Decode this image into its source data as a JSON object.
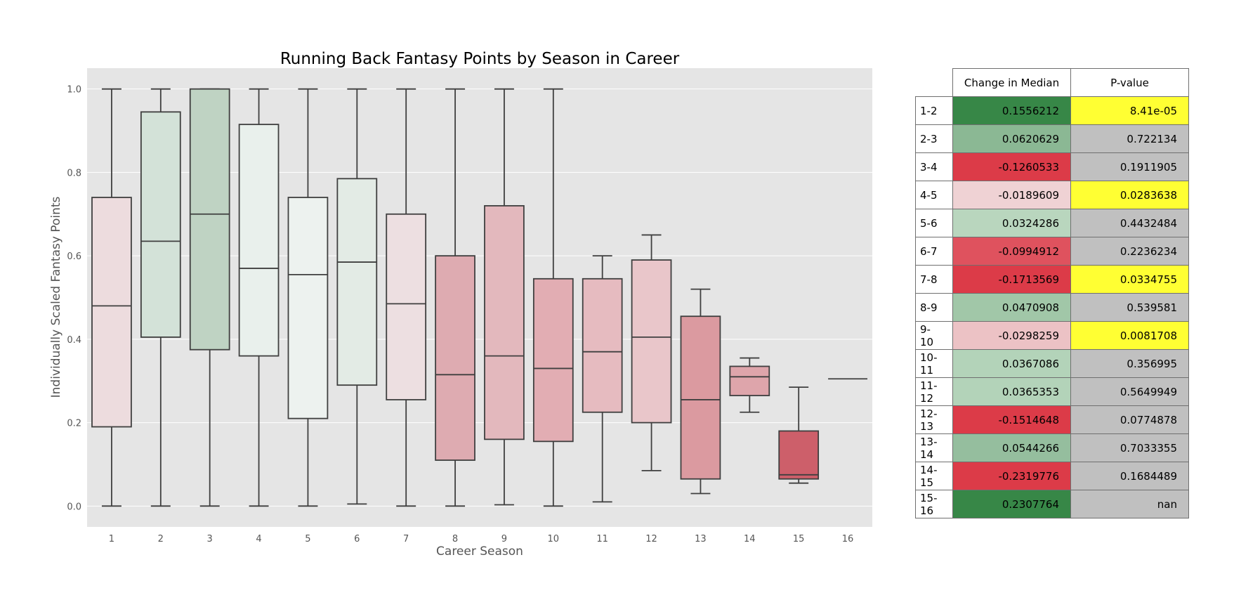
{
  "colors": {
    "plot_background": "#e5e5e5",
    "box_edge": "#3f3f3f",
    "yellow": "#ffff33",
    "gray": "#c0c0c0"
  },
  "chart_data": [
    {
      "type": "box",
      "title": "Running Back Fantasy Points by Season in Career",
      "xlabel": "Career Season",
      "ylabel": "Individually Scaled Fantasy Points",
      "ylim": [
        -0.05,
        1.05
      ],
      "yticks": [
        "0.0",
        "0.2",
        "0.4",
        "0.6",
        "0.8",
        "1.0"
      ],
      "grid": true,
      "categories": [
        "1",
        "2",
        "3",
        "4",
        "5",
        "6",
        "7",
        "8",
        "9",
        "10",
        "11",
        "12",
        "13",
        "14",
        "15",
        "16"
      ],
      "boxes": [
        {
          "min": 0.0,
          "q1": 0.19,
          "median": 0.48,
          "q3": 0.74,
          "max": 1.0,
          "color": "#eddcde"
        },
        {
          "min": 0.0,
          "q1": 0.405,
          "median": 0.635,
          "q3": 0.945,
          "max": 1.0,
          "color": "#d3e2d8"
        },
        {
          "min": 0.0,
          "q1": 0.375,
          "median": 0.7,
          "q3": 1.0,
          "max": 1.0,
          "color": "#bfd3c3"
        },
        {
          "min": 0.0,
          "q1": 0.36,
          "median": 0.57,
          "q3": 0.915,
          "max": 1.0,
          "color": "#e9f0ec"
        },
        {
          "min": 0.0,
          "q1": 0.21,
          "median": 0.555,
          "q3": 0.74,
          "max": 1.0,
          "color": "#edf2ef"
        },
        {
          "min": 0.005,
          "q1": 0.29,
          "median": 0.585,
          "q3": 0.785,
          "max": 1.0,
          "color": "#e3ebe5"
        },
        {
          "min": 0.0,
          "q1": 0.255,
          "median": 0.485,
          "q3": 0.7,
          "max": 1.0,
          "color": "#eddfe1"
        },
        {
          "min": 0.0,
          "q1": 0.11,
          "median": 0.315,
          "q3": 0.6,
          "max": 1.0,
          "color": "#deabb1"
        },
        {
          "min": 0.003,
          "q1": 0.16,
          "median": 0.36,
          "q3": 0.72,
          "max": 1.0,
          "color": "#e3b8bd"
        },
        {
          "min": 0.0,
          "q1": 0.155,
          "median": 0.33,
          "q3": 0.545,
          "max": 1.0,
          "color": "#e2adb3"
        },
        {
          "min": 0.01,
          "q1": 0.225,
          "median": 0.37,
          "q3": 0.545,
          "max": 0.6,
          "color": "#e6bbc0"
        },
        {
          "min": 0.085,
          "q1": 0.2,
          "median": 0.405,
          "q3": 0.59,
          "max": 0.65,
          "color": "#e9c6ca"
        },
        {
          "min": 0.03,
          "q1": 0.065,
          "median": 0.255,
          "q3": 0.455,
          "max": 0.52,
          "color": "#db9aa0"
        },
        {
          "min": 0.225,
          "q1": 0.265,
          "median": 0.31,
          "q3": 0.335,
          "max": 0.355,
          "color": "#dea5ab"
        },
        {
          "min": 0.055,
          "q1": 0.065,
          "median": 0.075,
          "q3": 0.18,
          "max": 0.285,
          "color": "#cd5f6a"
        },
        {
          "min": 0.305,
          "q1": 0.305,
          "median": 0.305,
          "q3": 0.305,
          "max": 0.305,
          "color": "#eddcde"
        }
      ]
    },
    {
      "type": "table",
      "columns": [
        "Change in Median",
        "P-value"
      ],
      "rows": [
        {
          "label": "1-2",
          "change": "0.1556212",
          "pvalue": "8.41e-05",
          "change_color": "#378747",
          "pvalue_color": "#ffff33"
        },
        {
          "label": "2-3",
          "change": "0.0620629",
          "pvalue": "0.722134",
          "change_color": "#8bb894",
          "pvalue_color": "#c0c0c0"
        },
        {
          "label": "3-4",
          "change": "-0.1260533",
          "pvalue": "0.1911905",
          "change_color": "#dc3b48",
          "pvalue_color": "#c0c0c0"
        },
        {
          "label": "4-5",
          "change": "-0.0189609",
          "pvalue": "0.0283638",
          "change_color": "#efd2d4",
          "pvalue_color": "#ffff33"
        },
        {
          "label": "5-6",
          "change": "0.0324286",
          "pvalue": "0.4432484",
          "change_color": "#b9d6be",
          "pvalue_color": "#c0c0c0"
        },
        {
          "label": "6-7",
          "change": "-0.0994912",
          "pvalue": "0.2236234",
          "change_color": "#df525e",
          "pvalue_color": "#c0c0c0"
        },
        {
          "label": "7-8",
          "change": "-0.1713569",
          "pvalue": "0.0334755",
          "change_color": "#dc3b48",
          "pvalue_color": "#ffff33"
        },
        {
          "label": "8-9",
          "change": "0.0470908",
          "pvalue": "0.539581",
          "change_color": "#a1c7a8",
          "pvalue_color": "#c0c0c0"
        },
        {
          "label": "9-10",
          "change": "-0.0298259",
          "pvalue": "0.0081708",
          "change_color": "#ecc2c5",
          "pvalue_color": "#ffff33"
        },
        {
          "label": "10-11",
          "change": "0.0367086",
          "pvalue": "0.356995",
          "change_color": "#b3d3b9",
          "pvalue_color": "#c0c0c0"
        },
        {
          "label": "11-12",
          "change": "0.0365353",
          "pvalue": "0.5649949",
          "change_color": "#b3d3b9",
          "pvalue_color": "#c0c0c0"
        },
        {
          "label": "12-13",
          "change": "-0.1514648",
          "pvalue": "0.0774878",
          "change_color": "#dc3b48",
          "pvalue_color": "#c0c0c0"
        },
        {
          "label": "13-14",
          "change": "0.0544266",
          "pvalue": "0.7033355",
          "change_color": "#95be9e",
          "pvalue_color": "#c0c0c0"
        },
        {
          "label": "14-15",
          "change": "-0.2319776",
          "pvalue": "0.1684489",
          "change_color": "#dc3b48",
          "pvalue_color": "#c0c0c0"
        },
        {
          "label": "15-16",
          "change": "0.2307764",
          "pvalue": "nan",
          "change_color": "#378747",
          "pvalue_color": "#c0c0c0"
        }
      ]
    }
  ]
}
